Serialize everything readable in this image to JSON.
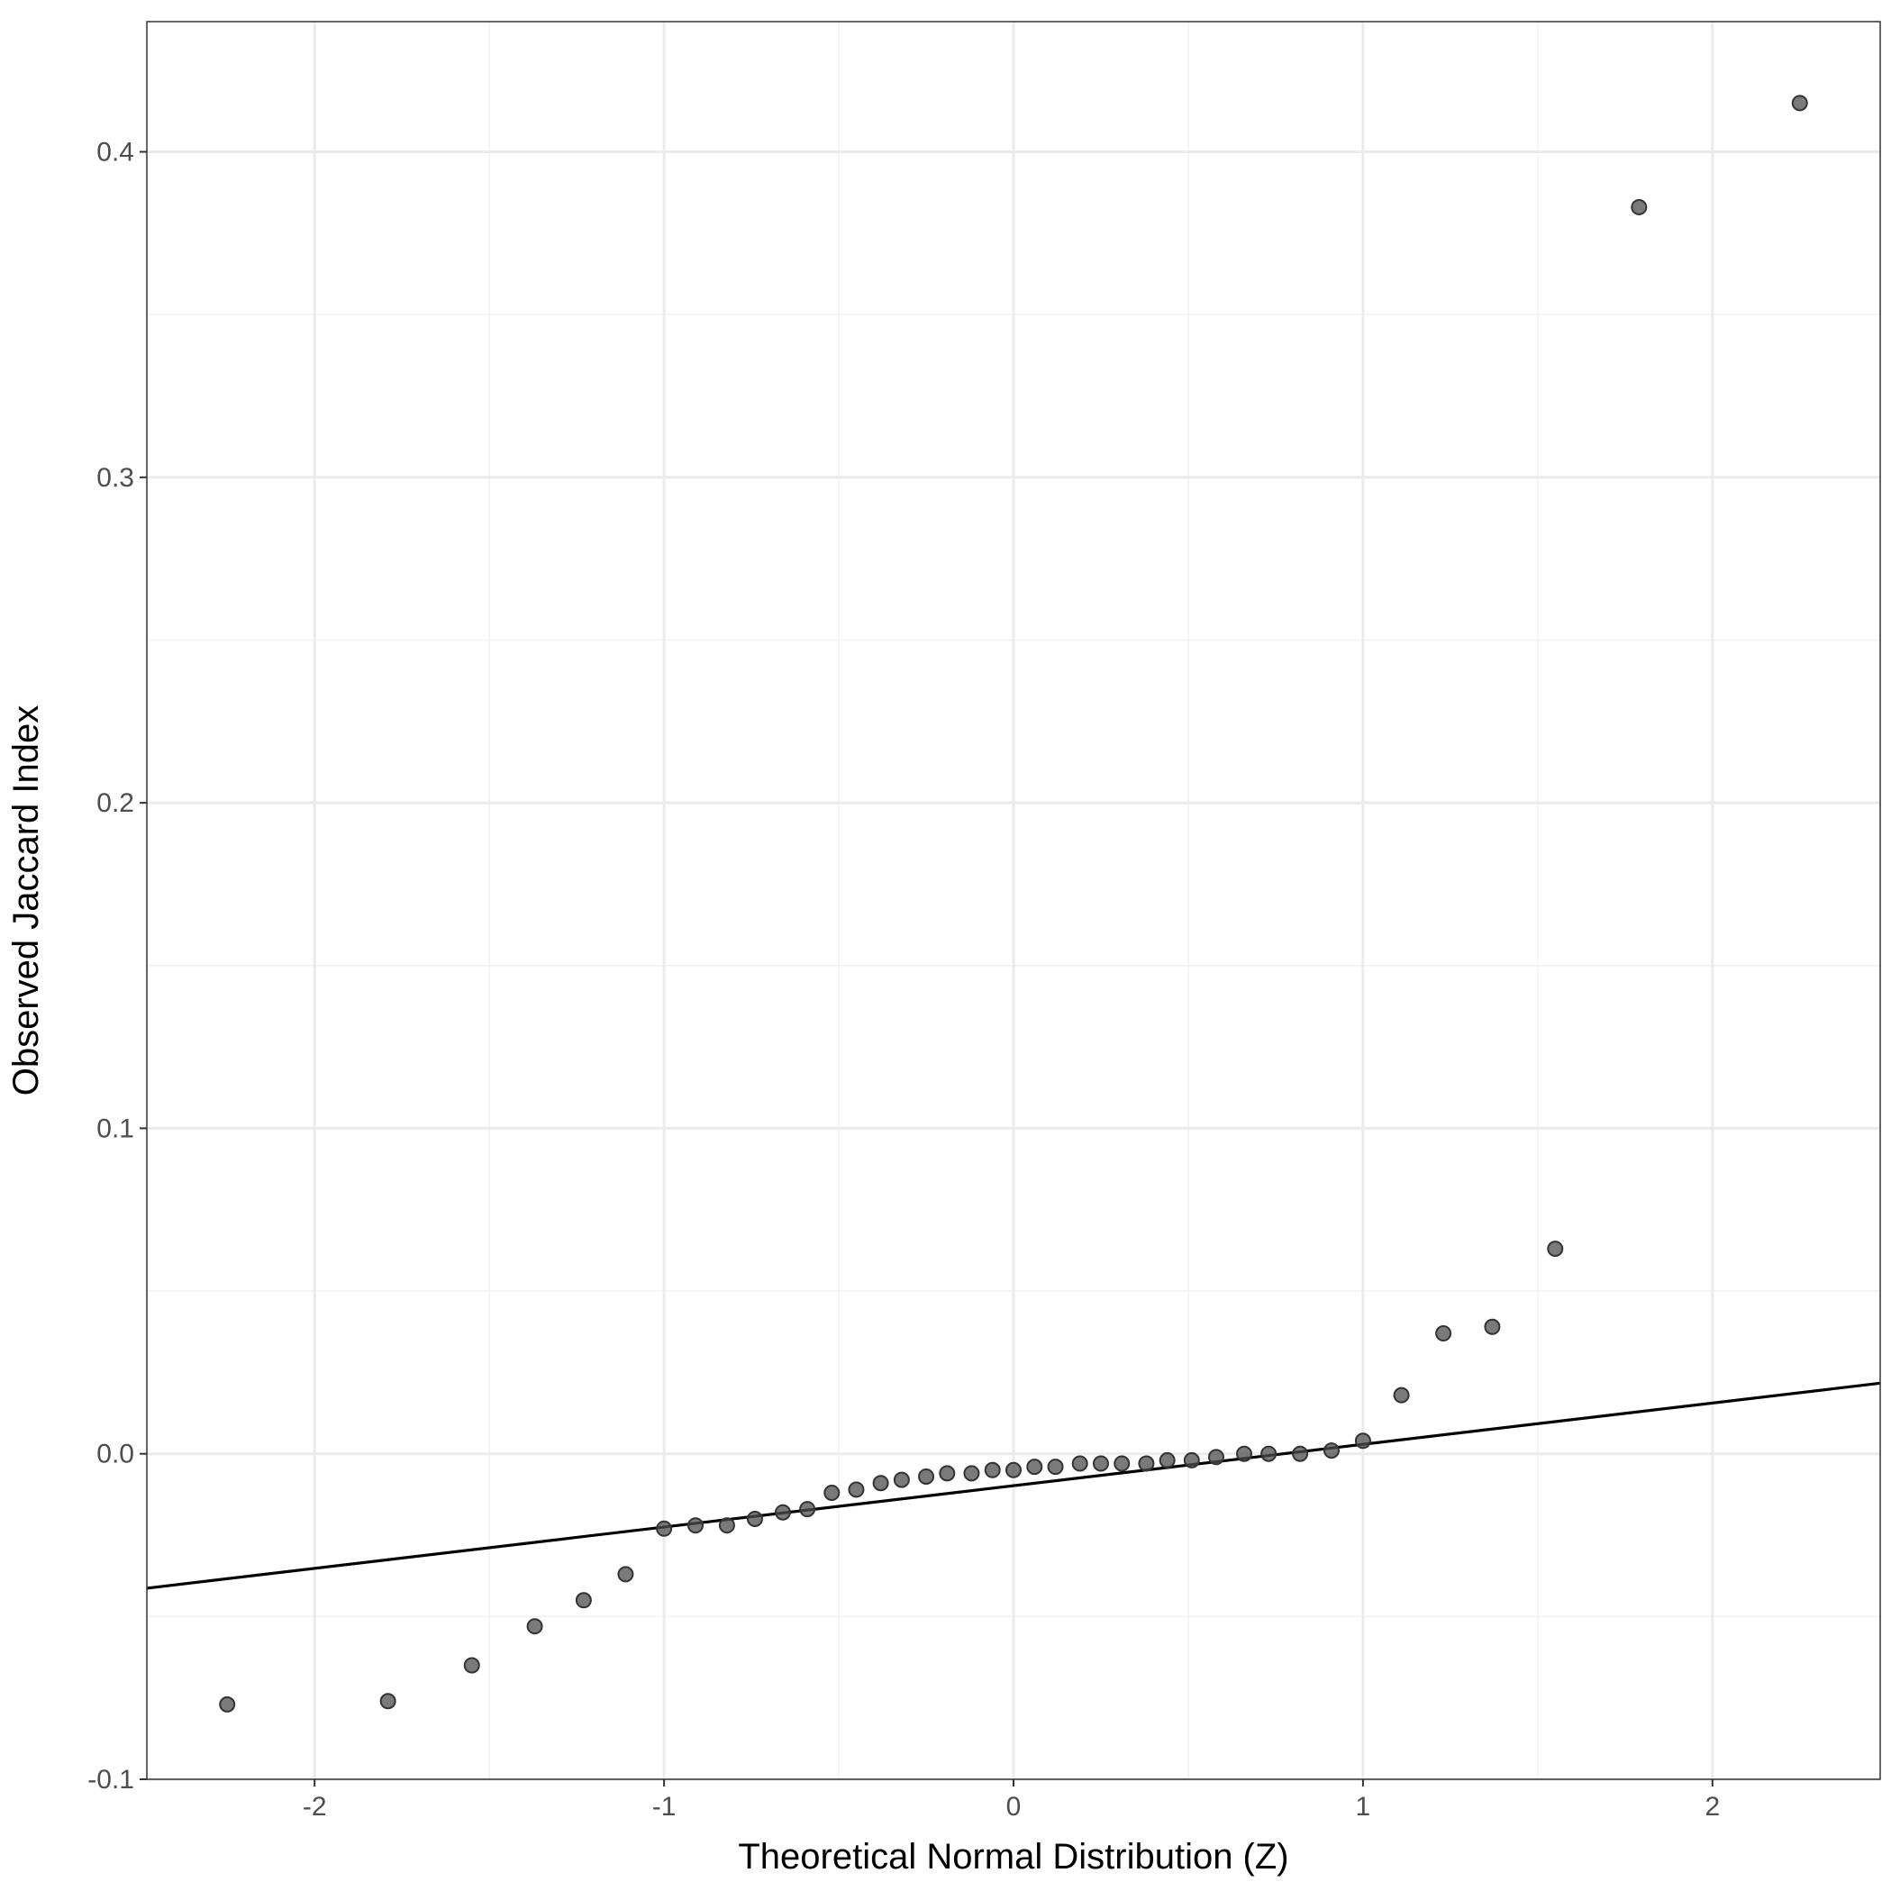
{
  "chart_data": {
    "type": "scatter",
    "title": "",
    "xlabel": "Theoretical Normal Distribution (Z)",
    "ylabel": "Observed Jaccard Index",
    "xlim": [
      -2.48,
      2.48
    ],
    "ylim": [
      -0.1,
      0.44
    ],
    "x_ticks": [
      -2,
      -1,
      0,
      1,
      2
    ],
    "x_tick_labels": [
      "-2",
      "-1",
      "0",
      "1",
      "2"
    ],
    "y_ticks": [
      -0.1,
      0.0,
      0.1,
      0.2,
      0.3,
      0.4
    ],
    "y_tick_labels": [
      "-0.1",
      "0.0",
      "0.1",
      "0.2",
      "0.3",
      "0.4"
    ],
    "grid": true,
    "legend": "none",
    "point_color": "#4d4d4d",
    "line_color": "#000000",
    "points": [
      [
        -2.25,
        -0.077
      ],
      [
        -1.79,
        -0.076
      ],
      [
        -1.55,
        -0.065
      ],
      [
        -1.37,
        -0.053
      ],
      [
        -1.23,
        -0.045
      ],
      [
        -1.11,
        -0.037
      ],
      [
        -1.0,
        -0.023
      ],
      [
        -0.91,
        -0.022
      ],
      [
        -0.82,
        -0.022
      ],
      [
        -0.74,
        -0.02
      ],
      [
        -0.66,
        -0.018
      ],
      [
        -0.59,
        -0.017
      ],
      [
        -0.52,
        -0.012
      ],
      [
        -0.45,
        -0.011
      ],
      [
        -0.38,
        -0.009
      ],
      [
        -0.32,
        -0.008
      ],
      [
        -0.25,
        -0.007
      ],
      [
        -0.19,
        -0.006
      ],
      [
        -0.12,
        -0.006
      ],
      [
        -0.06,
        -0.005
      ],
      [
        0.0,
        -0.005
      ],
      [
        0.06,
        -0.004
      ],
      [
        0.12,
        -0.004
      ],
      [
        0.19,
        -0.003
      ],
      [
        0.25,
        -0.003
      ],
      [
        0.31,
        -0.003
      ],
      [
        0.38,
        -0.003
      ],
      [
        0.44,
        -0.002
      ],
      [
        0.51,
        -0.002
      ],
      [
        0.58,
        -0.001
      ],
      [
        0.66,
        0.0
      ],
      [
        0.73,
        0.0
      ],
      [
        0.82,
        0.0
      ],
      [
        0.91,
        0.001
      ],
      [
        1.0,
        0.004
      ],
      [
        1.11,
        0.018
      ],
      [
        1.23,
        0.037
      ],
      [
        1.37,
        0.039
      ],
      [
        1.55,
        0.063
      ],
      [
        1.79,
        0.383
      ],
      [
        2.25,
        0.415
      ]
    ],
    "reference_line": {
      "intercept": -0.0098,
      "slope": 0.0127
    }
  }
}
